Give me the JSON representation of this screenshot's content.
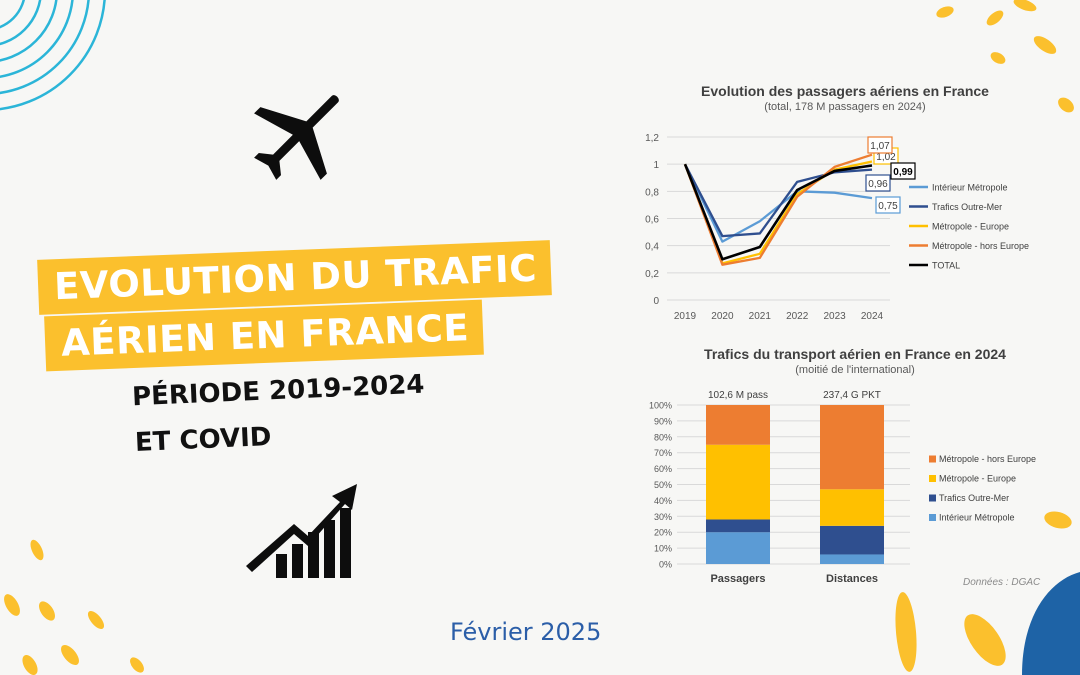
{
  "headline": {
    "line1": "EVOLUTION DU TRAFIC",
    "line2": "AÉRIEN EN FRANCE",
    "period": "PÉRIODE 2019-2024",
    "covid": "ET COVID"
  },
  "date_label": "Février 2025",
  "icons": [
    "airplane-icon",
    "growth-chart-icon"
  ],
  "colors": {
    "accent_yellow": "#fbc02d",
    "blue_text": "#2b5ea8",
    "interieur": "#5b9bd5",
    "outremer": "#2f4f8f",
    "europe": "#ffc000",
    "horseurope": "#ed7d31",
    "total": "#000000"
  },
  "source_note": "Données : DGAC",
  "chart_data": [
    {
      "type": "line",
      "title": "Evolution des passagers aériens en France",
      "subtitle": "(total, 178 M passagers en 2024)",
      "x": [
        "2019",
        "2020",
        "2021",
        "2022",
        "2023",
        "2024"
      ],
      "ylim": [
        0,
        1.2
      ],
      "yticks": [
        "0",
        "0,2",
        "0,4",
        "0,6",
        "0,8",
        "1",
        "1,2"
      ],
      "grid": true,
      "legend_position": "right",
      "series": [
        {
          "name": "Intérieur Métropole",
          "values": [
            1.0,
            0.43,
            0.58,
            0.8,
            0.79,
            0.75
          ],
          "end_label": "0,75"
        },
        {
          "name": "Trafics Outre-Mer",
          "values": [
            1.0,
            0.47,
            0.49,
            0.87,
            0.94,
            0.96
          ],
          "end_label": "0,96"
        },
        {
          "name": "Métropole - Europe",
          "values": [
            1.0,
            0.27,
            0.34,
            0.78,
            0.96,
            1.02
          ],
          "end_label": "1,02"
        },
        {
          "name": "Métropole - hors Europe",
          "values": [
            1.0,
            0.26,
            0.31,
            0.76,
            0.98,
            1.07
          ],
          "end_label": "1,07"
        },
        {
          "name": "TOTAL",
          "values": [
            1.0,
            0.3,
            0.39,
            0.81,
            0.95,
            0.99
          ],
          "end_label": "0,99"
        }
      ]
    },
    {
      "type": "bar",
      "stacked": true,
      "percent": true,
      "title": "Trafics du transport aérien en France en 2024",
      "subtitle": "(moitié de l'international)",
      "categories": [
        "Passagers",
        "Distances"
      ],
      "totals": [
        "102,6 M pass",
        "237,4 G PKT"
      ],
      "ylim": [
        0,
        100
      ],
      "yticks": [
        "0%",
        "10%",
        "20%",
        "30%",
        "40%",
        "50%",
        "60%",
        "70%",
        "80%",
        "90%",
        "100%"
      ],
      "grid": true,
      "legend_position": "right",
      "series": [
        {
          "name": "Intérieur Métropole",
          "values": [
            20,
            6
          ]
        },
        {
          "name": "Trafics Outre-Mer",
          "values": [
            8,
            18
          ]
        },
        {
          "name": "Métropole - Europe",
          "values": [
            47,
            23
          ]
        },
        {
          "name": "Métropole - hors Europe",
          "values": [
            25,
            53
          ]
        }
      ]
    }
  ]
}
